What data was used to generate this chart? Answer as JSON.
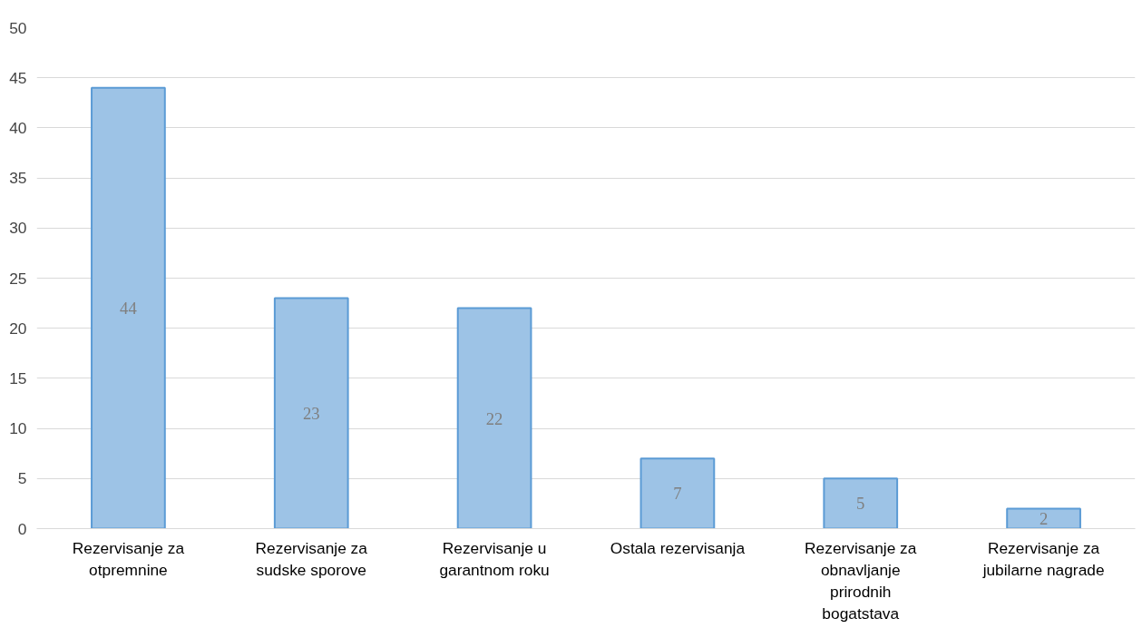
{
  "chart_data": {
    "type": "bar",
    "categories": [
      "Rezervisanje za otpremnine",
      "Rezervisanje za sudske sporove",
      "Rezervisanje u garantnom roku",
      "Ostala rezervisanja",
      "Rezervisanje za obnavljanje prirodnih bogatstava",
      "Rezervisanje za jubilarne nagrade"
    ],
    "values": [
      44,
      23,
      22,
      7,
      5,
      2
    ],
    "color": "#9dc3e6",
    "ylim": [
      0,
      50
    ],
    "yticks": [
      0,
      5,
      10,
      15,
      20,
      25,
      30,
      35,
      40,
      45,
      50
    ],
    "grid": "y",
    "data_labels": true
  }
}
